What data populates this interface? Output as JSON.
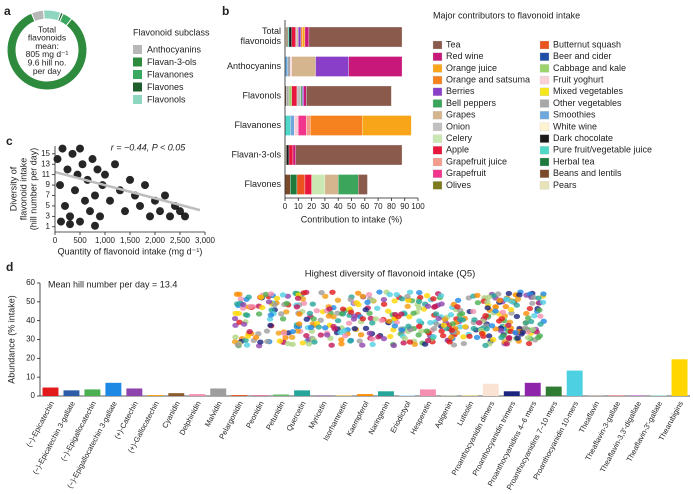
{
  "chart_data": [
    {
      "type": "donut",
      "panel_label": "a",
      "center_text": [
        "Total",
        "flavonoids",
        "mean:",
        "805 mg d⁻¹",
        "9.6 hill no.",
        "per day"
      ],
      "legend_title": "Flavonoid subclass",
      "categories": [
        "Anthocyanins",
        "Flavan-3-ols",
        "Flavanones",
        "Flavones",
        "Flavonols"
      ],
      "values": [
        5,
        83,
        4,
        1,
        7
      ],
      "colors": [
        "#b8b8b8",
        "#2e8b3e",
        "#3aa860",
        "#1f5e2c",
        "#8fd6c0"
      ]
    },
    {
      "type": "stacked_barh",
      "panel_label": "b",
      "categories": [
        "Total flavonoids",
        "Anthocyanins",
        "Flavonols",
        "Flavanones",
        "Flavan-3-ols",
        "Flavones"
      ],
      "legend_title": "Major contributors to flavonoid intake",
      "x_label": "Contribution to intake (%)",
      "xlim": [
        0,
        100
      ],
      "xticks": [
        0,
        10,
        20,
        30,
        40,
        50,
        60,
        70,
        80,
        90,
        100
      ],
      "series": [
        {
          "name": "Tea",
          "color": "#8a5a4c",
          "values": [
            70,
            0,
            64,
            0,
            80,
            7
          ]
        },
        {
          "name": "Red wine",
          "color": "#c8187a",
          "values": [
            3,
            40,
            2,
            0,
            2,
            0
          ]
        },
        {
          "name": "Orange juice",
          "color": "#f9a51a",
          "values": [
            2,
            0,
            0,
            37,
            0,
            0
          ]
        },
        {
          "name": "Orange and satsuma",
          "color": "#f5821f",
          "values": [
            1,
            0,
            0,
            39,
            0,
            0
          ]
        },
        {
          "name": "Berries",
          "color": "#8a3fc9",
          "values": [
            2,
            25,
            1,
            0,
            0,
            0
          ]
        },
        {
          "name": "Bell peppers",
          "color": "#3ba55c",
          "values": [
            0,
            0,
            1,
            0,
            0,
            15
          ]
        },
        {
          "name": "Grapes",
          "color": "#d5b58e",
          "values": [
            1,
            18,
            0,
            0,
            0,
            10
          ]
        },
        {
          "name": "Onion",
          "color": "#c0c0c0",
          "values": [
            1,
            0,
            3,
            0,
            0,
            0
          ]
        },
        {
          "name": "Celery",
          "color": "#c9e8b2",
          "values": [
            0,
            0,
            0,
            0,
            0,
            10
          ]
        },
        {
          "name": "Apple",
          "color": "#e8163c",
          "values": [
            3,
            0,
            4,
            0,
            3,
            5
          ]
        },
        {
          "name": "Grapefruit juice",
          "color": "#f49c8c",
          "values": [
            0,
            0,
            0,
            3,
            0,
            0
          ]
        },
        {
          "name": "Grapefruit",
          "color": "#f2358c",
          "values": [
            0,
            0,
            0,
            6,
            0,
            0
          ]
        },
        {
          "name": "Olives",
          "color": "#7d7a1e",
          "values": [
            0,
            0,
            0,
            0,
            0,
            0
          ]
        },
        {
          "name": "Butternut squash",
          "color": "#e8531e",
          "values": [
            0,
            0,
            0,
            0,
            0,
            6
          ]
        },
        {
          "name": "Beer and cider",
          "color": "#1f4ea8",
          "values": [
            0,
            0,
            0,
            0,
            0,
            0
          ]
        },
        {
          "name": "Cabbage and kale",
          "color": "#9cd36b",
          "values": [
            0,
            0,
            2,
            0,
            0,
            0
          ]
        },
        {
          "name": "Fruit yoghurt",
          "color": "#f9d0d8",
          "values": [
            0,
            1,
            0,
            3,
            0,
            0
          ]
        },
        {
          "name": "Mixed vegetables",
          "color": "#f5e71c",
          "values": [
            0,
            0,
            0,
            0,
            0,
            0
          ]
        },
        {
          "name": "Other vegetables",
          "color": "#a8a8a8",
          "values": [
            0,
            2,
            2,
            0,
            0,
            0
          ]
        },
        {
          "name": "Smoothies",
          "color": "#6fa8dc",
          "values": [
            0,
            2,
            0,
            3,
            0,
            0
          ]
        },
        {
          "name": "White wine",
          "color": "#fff3d0",
          "values": [
            0,
            0,
            0,
            0,
            0,
            0
          ]
        },
        {
          "name": "Dark chocolate",
          "color": "#1a1a1a",
          "values": [
            2,
            0,
            0,
            0,
            2,
            0
          ]
        },
        {
          "name": "Pure fruit/vegetable juice",
          "color": "#4fd8c8",
          "values": [
            1,
            0,
            0,
            4,
            0,
            0
          ]
        },
        {
          "name": "Herbal tea",
          "color": "#1e7a3c",
          "values": [
            0,
            0,
            0,
            0,
            0,
            5
          ]
        },
        {
          "name": "Beans and lentils",
          "color": "#7a4a2a",
          "values": [
            1,
            0,
            1,
            0,
            0,
            4
          ]
        },
        {
          "name": "Pears",
          "color": "#e8e2b8",
          "values": [
            1,
            0,
            0,
            0,
            1,
            0
          ]
        }
      ]
    },
    {
      "type": "scatter",
      "panel_label": "c",
      "annotation": "r = −0.44, P < 0.05",
      "x": [
        50,
        100,
        150,
        200,
        250,
        300,
        350,
        400,
        450,
        500,
        550,
        600,
        650,
        700,
        750,
        800,
        850,
        900,
        950,
        1000,
        1100,
        1200,
        1300,
        1400,
        1500,
        1600,
        1700,
        1800,
        1900,
        2000,
        2100,
        2200,
        2300,
        2400,
        2500,
        2600,
        120,
        300,
        500,
        800
      ],
      "y": [
        14,
        9,
        16,
        5,
        12,
        3,
        15,
        8,
        11,
        2,
        13,
        6,
        10,
        4,
        14,
        7,
        12,
        3,
        9,
        11,
        6,
        13,
        8,
        4,
        10,
        7,
        5,
        9,
        3,
        6,
        4,
        7,
        3,
        5,
        4,
        3,
        2,
        1.5,
        16,
        1.2
      ],
      "fit": {
        "x": [
          0,
          2900
        ],
        "y": [
          11.5,
          4.2
        ]
      },
      "color": "#000000",
      "fit_color": "#bdbdbd",
      "xlim": [
        0,
        3000
      ],
      "ylim": [
        0,
        16.5
      ],
      "xticks": [
        0,
        500,
        {
          "value": 1000,
          "label": "1,000"
        },
        {
          "value": 1500,
          "label": "1,500"
        },
        {
          "value": 2000,
          "label": "2,000"
        },
        {
          "value": 2500,
          "label": "2,500"
        },
        {
          "value": 3000,
          "label": "3,000"
        }
      ],
      "yticks": [
        1,
        3,
        5,
        7,
        9,
        11,
        13,
        15
      ],
      "x_label": "Quantity of flavonoid intake (mg d⁻¹)",
      "y_label": [
        "Diversity of",
        "flavonoid intake",
        "(hill number per day)"
      ]
    },
    {
      "type": "bar",
      "panel_label": "d",
      "title": "Highest diversity of flavonoid intake (Q5)",
      "annotation": "Mean hill number per day = 13.4",
      "y_label": "Abundance (% intake)",
      "ylim": [
        0,
        60
      ],
      "yticks": [
        0,
        10,
        20,
        30,
        40,
        50,
        60
      ],
      "categories": [
        "(−)-Epicatechin",
        "(−)-Epicatechin 3-gallate",
        "(−)-Epigallocatechin",
        "(−)-Epigallocatechin 3-gallate",
        "(+)-Catechin",
        "(+)-Gallocatechin",
        "Cyanidin",
        "Delphinidin",
        "Malvidin",
        "Pelargonidin",
        "Peonidin",
        "Petunidin",
        "Quercetin",
        "Myricetin",
        "Isorhamnetin",
        "Kaempferol",
        "Naringenin",
        "Eriodictyol",
        "Hesperetin",
        "Apigenin",
        "Luteolin",
        "Proanthocyanidin dimers",
        "Proanthocyanidin trimers",
        "Proanthocyanidins 4–6 mers",
        "Proanthocyanidins 7–10 mers",
        "Proanthocyanidin 10-mers",
        "Theaflavin",
        "Theaflavin-3-gallate",
        "Theaflavin-3,3′-digallate",
        "Theaflavin-3′-gallate",
        "Thearubigins"
      ],
      "values": [
        4.5,
        3,
        3.5,
        7,
        4,
        0.5,
        1.5,
        1,
        4,
        0.5,
        0.3,
        0.8,
        3,
        0.2,
        0.2,
        1,
        2.5,
        0.3,
        3.5,
        0.2,
        0.2,
        6.5,
        2.5,
        7,
        5,
        13.5,
        0.3,
        0.5,
        0.5,
        0.3,
        19.5
      ],
      "colors": [
        "#e31a1c",
        "#2c5ba8",
        "#4caf50",
        "#1e88e5",
        "#8e44ad",
        "#f39c12",
        "#8b5a2b",
        "#f48fb1",
        "#9e9e9e",
        "#e8531e",
        "#c2185b",
        "#66bb6a",
        "#26a69a",
        "#7b1fa2",
        "#ffb300",
        "#fb8c00",
        "#26a69a",
        "#90caf9",
        "#f48fb1",
        "#aed581",
        "#fdd835",
        "#fbe3d4",
        "#1a237e",
        "#8e24aa",
        "#2e7d32",
        "#4dd0e1",
        "#a1887f",
        "#ef9a9a",
        "#ce93d8",
        "#80cbc4",
        "#ffd600"
      ]
    }
  ]
}
